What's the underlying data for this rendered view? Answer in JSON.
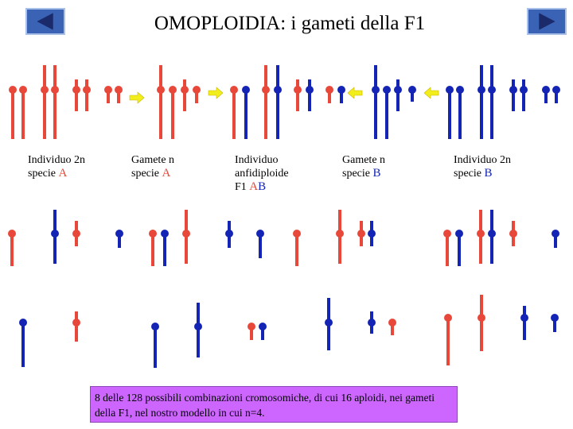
{
  "title": "OMOPLOIDIA: i gameti della F1",
  "nav": {
    "prev": "left-arrow-icon",
    "next": "right-arrow-icon"
  },
  "colors": {
    "specie_A": "#e8483a",
    "specie_B": "#1424b4",
    "gamete_arrow": "#f2ee1c",
    "note_bg": "#cc66ff",
    "nav_bg": "#3a63b5"
  },
  "labels": [
    {
      "line1": "Individuo 2n",
      "line2": "specie",
      "species": "A"
    },
    {
      "line1": "Gamete n",
      "line2": "specie",
      "species": "A"
    },
    {
      "line1": "Individuo",
      "line2": "anfidiploide",
      "line3": "F1",
      "species_a": "A",
      "species_b": "B"
    },
    {
      "line1": "Gamete n",
      "line2": "specie",
      "species": "B"
    },
    {
      "line1": "Individuo 2n",
      "line2": "specie",
      "species": "B"
    }
  ],
  "note": "8 delle 128 possibili combinazioni cromosomiche, di cui 16 aploidi, nei gameti della F1, nel nostro modello in cui n=4."
}
